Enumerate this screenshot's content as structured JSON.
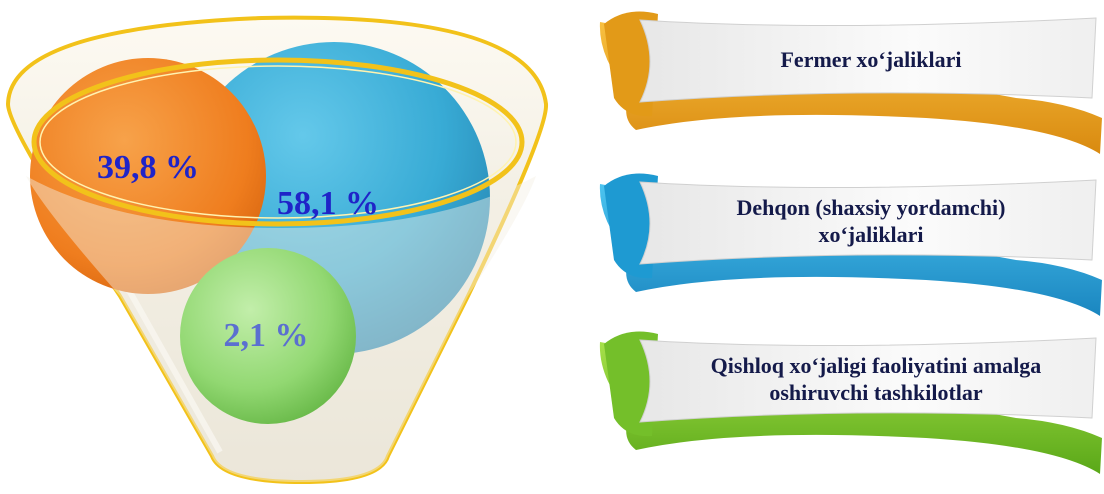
{
  "funnel": {
    "segments": [
      {
        "label": "39,8 %",
        "value": 39.8,
        "color": "#f0862a",
        "text_color": "#1f24c8"
      },
      {
        "label": "58,1 %",
        "value": 58.1,
        "color": "#2ea7d4",
        "text_color": "#1f24c8"
      },
      {
        "label": "2,1 %",
        "value": 2.1,
        "color": "#8cd46a",
        "text_color": "#5b6fd0"
      }
    ]
  },
  "legend": [
    {
      "lines": [
        "Fermer xo‘jaliklari"
      ],
      "color": "#f0a020"
    },
    {
      "lines": [
        "Dehqon (shaxsiy yordamchi)",
        "xo‘jaliklari"
      ],
      "color": "#2aa6dc"
    },
    {
      "lines": [
        "Qishloq xo‘jaligi faoliyatini amalga",
        "oshiruvchi tashkilotlar"
      ],
      "color": "#7ec82c"
    }
  ]
}
